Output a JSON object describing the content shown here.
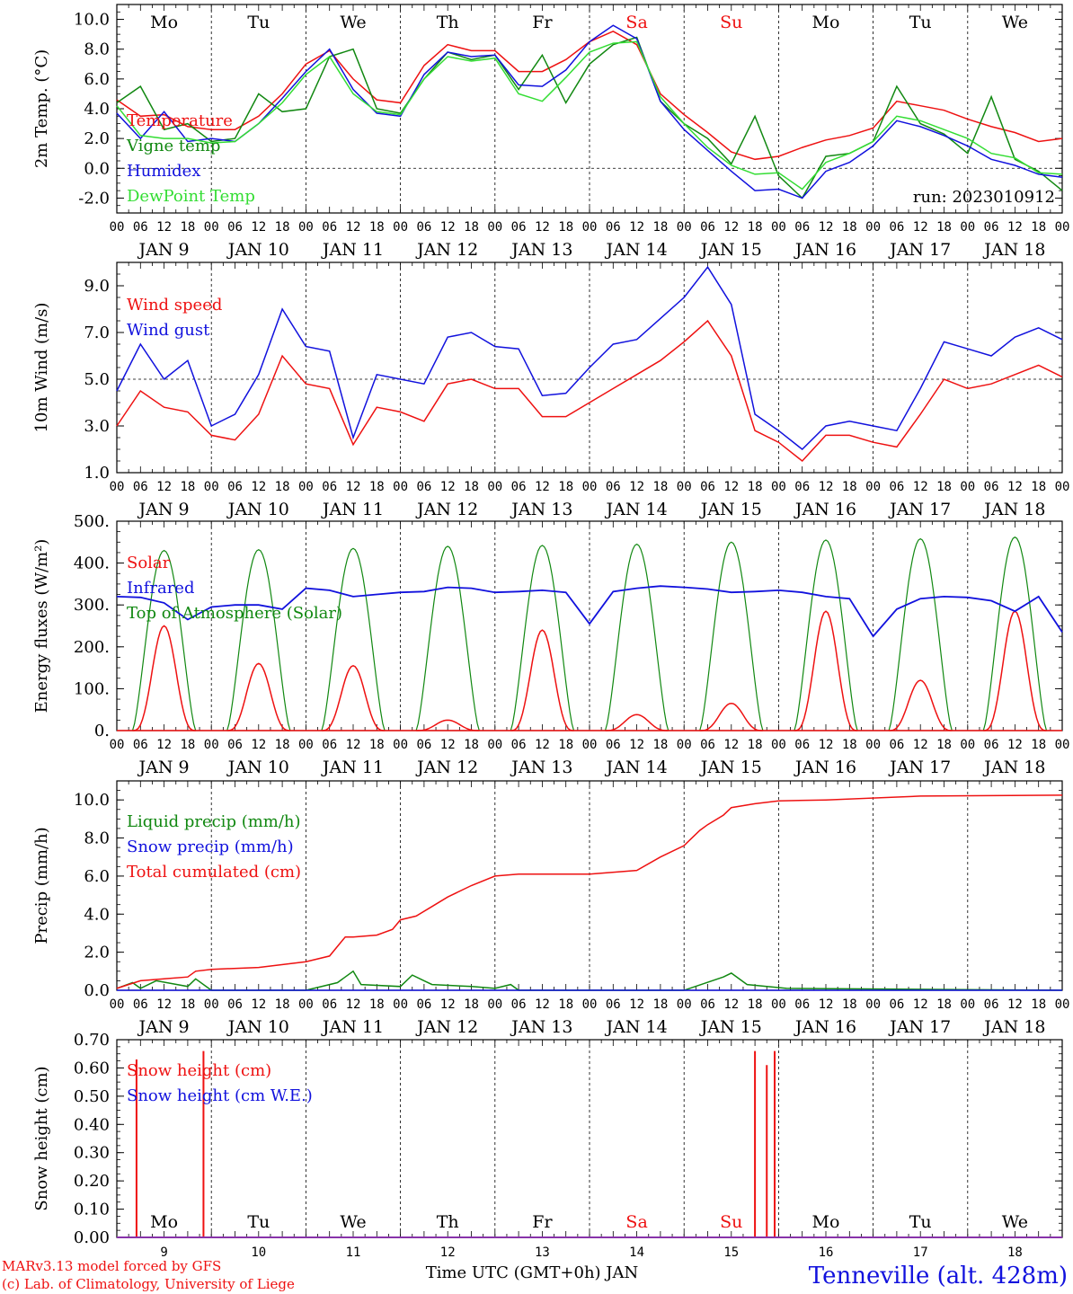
{
  "colors": {
    "red": "#ee1111",
    "green": "#118811",
    "blue": "#1111dd",
    "lightgreen": "#33dd33",
    "weekend": "#ee1111"
  },
  "time_axis": {
    "hour_ticks": [
      "00",
      "06",
      "12",
      "18"
    ],
    "final_tick": "00",
    "date_labels": [
      "JAN  9",
      "JAN 10",
      "JAN 11",
      "JAN 12",
      "JAN 13",
      "JAN 14",
      "JAN 15",
      "JAN 16",
      "JAN 17",
      "JAN 18"
    ],
    "weekdays": [
      "Mo",
      "Tu",
      "We",
      "Th",
      "Fr",
      "Sa",
      "Su",
      "Mo",
      "Tu",
      "We"
    ],
    "weekend_index": [
      5,
      6
    ],
    "bottom_day_numbers": [
      "9",
      "10",
      "11",
      "12",
      "13",
      "14",
      "15",
      "16",
      "17",
      "18"
    ],
    "xlabel": "Time UTC (GMT+0h) JAN"
  },
  "run_label": "run: 2023010912",
  "footer": {
    "line1": "MARv3.13 model forced by GFS",
    "line2": "(c) Lab. of Climatology, University of Liege",
    "station": "Tenneville (alt. 428m)"
  },
  "chart_data": [
    {
      "type": "line",
      "ylabel": "2m Temp. (°C)",
      "ylim": [
        -3,
        11
      ],
      "yticks": [
        "-2.0",
        "0.0",
        "2.0",
        "4.0",
        "6.0",
        "8.0",
        "10.0"
      ],
      "ytick_values": [
        -2,
        0,
        2,
        4,
        6,
        8,
        10
      ],
      "ref_line": 0,
      "x": [
        0,
        6,
        12,
        18,
        24,
        30,
        36,
        42,
        48,
        54,
        60,
        66,
        72,
        78,
        84,
        90,
        96,
        102,
        108,
        114,
        120,
        126,
        132,
        138,
        144,
        150,
        156,
        162,
        168,
        174,
        180,
        186,
        192,
        198,
        204,
        210,
        216,
        222,
        228,
        234,
        240
      ],
      "series": [
        {
          "name": "Temperature",
          "color": "red",
          "values": [
            4.6,
            3.5,
            3.6,
            2.8,
            2.6,
            2.6,
            3.5,
            5.0,
            7.0,
            7.9,
            6.0,
            4.6,
            4.4,
            6.9,
            8.3,
            7.9,
            7.9,
            6.5,
            6.5,
            7.3,
            8.5,
            9.2,
            8.3,
            5.0,
            3.6,
            2.4,
            1.1,
            0.6,
            0.8,
            1.4,
            1.9,
            2.2,
            2.7,
            4.5,
            4.2,
            3.9,
            3.3,
            2.8,
            2.4,
            1.8,
            2.0
          ]
        },
        {
          "name": "Vigne temp",
          "color": "green",
          "values": [
            4.4,
            5.5,
            2.6,
            3.0,
            1.8,
            2.0,
            5.0,
            3.8,
            4.0,
            7.5,
            8.0,
            4.0,
            3.7,
            6.0,
            7.8,
            7.3,
            7.6,
            5.3,
            7.6,
            4.4,
            7.0,
            8.3,
            8.8,
            4.5,
            3.0,
            2.0,
            0.3,
            3.5,
            -0.5,
            -2.0,
            0.8,
            1.0,
            1.8,
            5.5,
            3.0,
            2.3,
            1.0,
            4.8,
            0.6,
            -0.2,
            -1.5
          ]
        },
        {
          "name": "Humidex",
          "color": "blue",
          "values": [
            3.7,
            2.0,
            3.8,
            1.8,
            2.0,
            1.8,
            3.0,
            4.7,
            6.5,
            8.0,
            5.3,
            3.7,
            3.5,
            6.3,
            7.8,
            7.5,
            7.6,
            5.6,
            5.5,
            6.6,
            8.5,
            9.6,
            8.7,
            4.5,
            2.6,
            1.2,
            -0.2,
            -1.5,
            -1.4,
            -2.0,
            -0.2,
            0.4,
            1.5,
            3.2,
            2.8,
            2.2,
            1.5,
            0.6,
            0.2,
            -0.4,
            -0.6
          ]
        },
        {
          "name": "DewPoint Temp",
          "color": "lightgreen",
          "values": [
            4.2,
            2.2,
            2.0,
            2.0,
            1.7,
            1.8,
            3.0,
            4.4,
            6.3,
            7.5,
            5.0,
            3.8,
            3.6,
            6.0,
            7.5,
            7.2,
            7.4,
            5.0,
            4.5,
            6.1,
            7.8,
            8.4,
            8.5,
            4.8,
            3.0,
            1.4,
            0.2,
            -0.4,
            -0.3,
            -1.4,
            0.4,
            1.0,
            1.8,
            3.5,
            3.2,
            2.6,
            2.0,
            1.0,
            0.7,
            -0.3,
            -0.4
          ]
        }
      ]
    },
    {
      "type": "line",
      "ylabel": "10m Wind (m/s)",
      "ylim": [
        1,
        10
      ],
      "yticks": [
        "1.0",
        "3.0",
        "5.0",
        "7.0",
        "9.0"
      ],
      "ytick_values": [
        1,
        3,
        5,
        7,
        9
      ],
      "ref_line": 5,
      "x": [
        0,
        6,
        12,
        18,
        24,
        30,
        36,
        42,
        48,
        54,
        60,
        66,
        72,
        78,
        84,
        90,
        96,
        102,
        108,
        114,
        120,
        126,
        132,
        138,
        144,
        150,
        156,
        162,
        168,
        174,
        180,
        186,
        192,
        198,
        204,
        210,
        216,
        222,
        228,
        234,
        240
      ],
      "series": [
        {
          "name": "Wind speed",
          "color": "red",
          "values": [
            3.0,
            4.5,
            3.8,
            3.6,
            2.6,
            2.4,
            3.5,
            6.0,
            4.8,
            4.6,
            2.2,
            3.8,
            3.6,
            3.2,
            4.8,
            5.0,
            4.6,
            4.6,
            3.4,
            3.4,
            4.0,
            4.6,
            5.2,
            5.8,
            6.6,
            7.5,
            6.0,
            2.8,
            2.3,
            1.5,
            2.6,
            2.6,
            2.3,
            2.1,
            3.5,
            5.0,
            4.6,
            4.8,
            5.2,
            5.6,
            5.1
          ]
        },
        {
          "name": "Wind gust",
          "color": "blue",
          "values": [
            4.5,
            6.5,
            5.0,
            5.8,
            3.0,
            3.5,
            5.2,
            8.0,
            6.4,
            6.2,
            2.5,
            5.2,
            5.0,
            4.8,
            6.8,
            7.0,
            6.4,
            6.3,
            4.3,
            4.4,
            5.5,
            6.5,
            6.7,
            7.6,
            8.5,
            9.8,
            8.2,
            3.5,
            2.8,
            2.0,
            3.0,
            3.2,
            3.0,
            2.8,
            4.6,
            6.6,
            6.3,
            6.0,
            6.8,
            7.2,
            6.7
          ]
        }
      ]
    },
    {
      "type": "line",
      "ylabel": "Energy fluxes (W/m²)",
      "ylim": [
        0,
        500
      ],
      "yticks": [
        "0.",
        "100.",
        "200.",
        "300.",
        "400.",
        "500."
      ],
      "ytick_values": [
        0,
        100,
        200,
        300,
        400,
        500
      ],
      "solar_peaks": [
        250,
        160,
        155,
        25,
        240,
        38,
        65,
        285,
        120,
        285
      ],
      "toa_peaks": [
        430,
        432,
        435,
        440,
        442,
        445,
        450,
        455,
        458,
        462
      ],
      "series": [
        {
          "name": "Solar",
          "color": "red"
        },
        {
          "name": "Infrared",
          "color": "blue",
          "x": [
            0,
            6,
            12,
            18,
            24,
            30,
            36,
            42,
            48,
            54,
            60,
            66,
            72,
            78,
            84,
            90,
            96,
            102,
            108,
            114,
            120,
            126,
            132,
            138,
            144,
            150,
            156,
            162,
            168,
            174,
            180,
            186,
            192,
            198,
            204,
            210,
            216,
            222,
            228,
            234,
            240
          ],
          "values": [
            320,
            318,
            305,
            265,
            295,
            300,
            300,
            290,
            340,
            335,
            320,
            325,
            330,
            332,
            342,
            340,
            330,
            332,
            335,
            330,
            255,
            332,
            340,
            345,
            342,
            338,
            330,
            332,
            335,
            330,
            320,
            315,
            225,
            290,
            315,
            320,
            318,
            310,
            285,
            320,
            235
          ]
        },
        {
          "name": "Top of Atmosphere (Solar)",
          "color": "green"
        }
      ]
    },
    {
      "type": "line",
      "ylabel": "Precip (mm/h)",
      "ylim": [
        0,
        11
      ],
      "yticks": [
        "0.0",
        "2.0",
        "4.0",
        "6.0",
        "8.0",
        "10.0"
      ],
      "ytick_values": [
        0,
        2,
        4,
        6,
        8,
        10
      ],
      "series": [
        {
          "name": "Liquid precip (mm/h)",
          "color": "green",
          "x": [
            0,
            4,
            6,
            10,
            18,
            20,
            24,
            48,
            56,
            60,
            62,
            72,
            75,
            78,
            80,
            90,
            96,
            100,
            102,
            144,
            154,
            156,
            160,
            170,
            240
          ],
          "values": [
            0.1,
            0.4,
            0.1,
            0.5,
            0.2,
            0.6,
            0.0,
            0.0,
            0.4,
            1.0,
            0.3,
            0.2,
            0.8,
            0.5,
            0.3,
            0.2,
            0.1,
            0.3,
            0.0,
            0.0,
            0.7,
            0.9,
            0.3,
            0.1,
            0.0
          ]
        },
        {
          "name": "Snow precip (mm/h)",
          "color": "blue",
          "x": [
            0,
            240
          ],
          "values": [
            0.0,
            0.0
          ]
        },
        {
          "name": "Total cumulated (cm)",
          "color": "red",
          "x": [
            0,
            6,
            12,
            18,
            20,
            24,
            36,
            48,
            54,
            58,
            60,
            66,
            70,
            72,
            76,
            80,
            84,
            90,
            96,
            102,
            108,
            120,
            132,
            138,
            144,
            148,
            150,
            154,
            156,
            162,
            168,
            180,
            204,
            240
          ],
          "values": [
            0.1,
            0.5,
            0.6,
            0.7,
            1.0,
            1.1,
            1.2,
            1.5,
            1.8,
            2.8,
            2.8,
            2.9,
            3.2,
            3.7,
            3.9,
            4.4,
            4.9,
            5.5,
            6.0,
            6.1,
            6.1,
            6.1,
            6.3,
            7.0,
            7.6,
            8.4,
            8.7,
            9.2,
            9.6,
            9.8,
            9.95,
            10.0,
            10.2,
            10.25
          ]
        }
      ]
    },
    {
      "type": "line",
      "ylabel": "Snow height (cm)",
      "ylim": [
        0,
        0.7
      ],
      "yticks": [
        "0.00",
        "0.10",
        "0.20",
        "0.30",
        "0.40",
        "0.50",
        "0.60",
        "0.70"
      ],
      "ytick_values": [
        0,
        0.1,
        0.2,
        0.3,
        0.4,
        0.5,
        0.6,
        0.7
      ],
      "spikes": [
        {
          "x": 5,
          "value": 0.63
        },
        {
          "x": 22,
          "value": 0.66
        },
        {
          "x": 162,
          "value": 0.66
        },
        {
          "x": 165,
          "value": 0.61
        },
        {
          "x": 167,
          "value": 0.66
        }
      ],
      "series": [
        {
          "name": "Snow height (cm)",
          "color": "red"
        },
        {
          "name": "Snow height (cm W.E.)",
          "color": "blue"
        }
      ]
    }
  ]
}
